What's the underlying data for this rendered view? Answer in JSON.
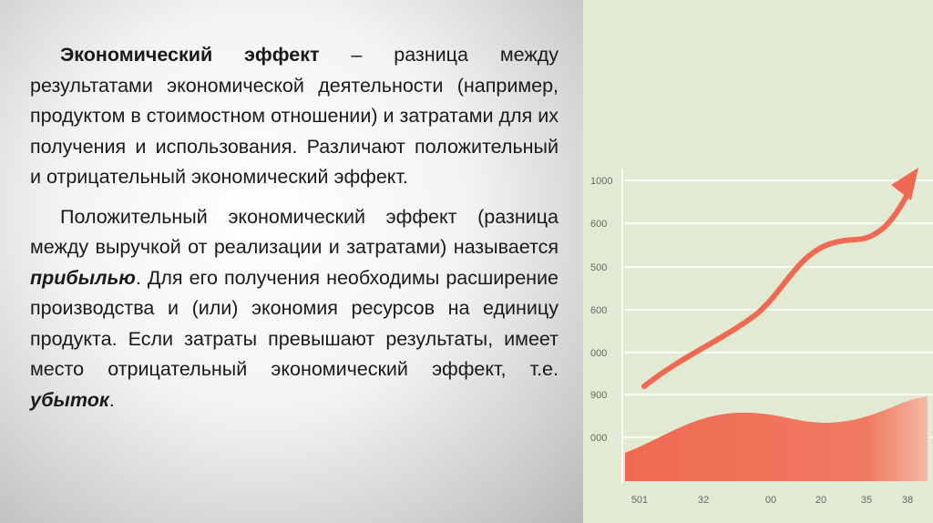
{
  "paragraphs": [
    {
      "term": "Экономический эффект",
      "text": " – разница между результатами экономической деятельности (например, продуктом в стоимостном отношении) и затратами для их получения и использования. Различают положительный и отрицательный экономический эффект."
    },
    {
      "text_1": "Положительный экономический эффект (разница между выручкой от реализации и затратами) называется ",
      "term_1": "прибылью",
      "text_2": ". Для его получения необходимы расширение производства и (или) экономия ресурсов на единицу продукта. Если затраты превышают результаты, имеет место отрицательный экономический эффект, т.е. ",
      "term_2": "убыток",
      "text_3": "."
    }
  ],
  "illustration": {
    "y_labels": [
      "1000",
      "600",
      "500",
      "600",
      "000",
      "900",
      "000"
    ],
    "x_labels": [
      "501",
      "32",
      "00",
      "20",
      "35",
      "38"
    ]
  }
}
